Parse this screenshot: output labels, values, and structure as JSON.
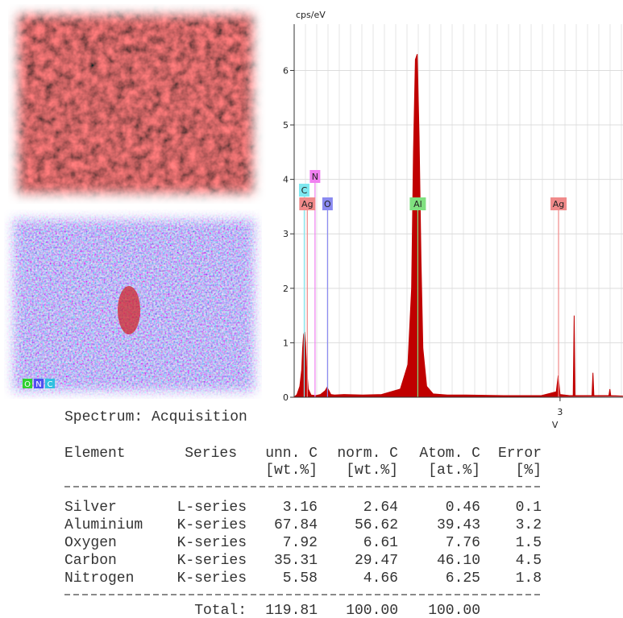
{
  "chart_data": {
    "type": "area",
    "ylabel": "cps/eV",
    "xlabel": "V",
    "color": "#c00000",
    "x": [
      0.17,
      0.2,
      0.23,
      0.25,
      0.26,
      0.27,
      0.28,
      0.29,
      0.3,
      0.32,
      0.35,
      0.4,
      0.45,
      0.5,
      0.52,
      0.54,
      0.56,
      0.6,
      0.7,
      0.9,
      1.1,
      1.3,
      1.38,
      1.42,
      1.44,
      1.46,
      1.48,
      1.5,
      1.52,
      1.54,
      1.58,
      1.65,
      1.8,
      2.0,
      2.4,
      2.8,
      2.96,
      2.98,
      3.0,
      3.1,
      3.14,
      3.15,
      3.16,
      3.3,
      3.34,
      3.35,
      3.36,
      3.5,
      3.52,
      3.53,
      3.54,
      3.67
    ],
    "y": [
      0,
      0.05,
      0.2,
      0.5,
      0.9,
      1.15,
      1.2,
      1.0,
      0.6,
      0.15,
      0.04,
      0.03,
      0.05,
      0.12,
      0.18,
      0.12,
      0.05,
      0.04,
      0.05,
      0.04,
      0.05,
      0.15,
      0.6,
      2.0,
      4.5,
      6.2,
      6.3,
      4.8,
      2.5,
      0.9,
      0.2,
      0.06,
      0.04,
      0.04,
      0.03,
      0.03,
      0.1,
      0.4,
      0.05,
      0.03,
      0.03,
      1.5,
      0.03,
      0.03,
      0.03,
      0.45,
      0.03,
      0.03,
      0.03,
      0.15,
      0.03,
      0.02
    ],
    "xlim": [
      0.17,
      3.67
    ],
    "ylim": [
      0,
      6.85
    ],
    "xticks": [
      3
    ],
    "yticks": [
      0,
      1,
      2,
      3,
      4,
      5,
      6
    ],
    "grid": true,
    "elements": [
      {
        "label": "C",
        "energy": 0.277,
        "color": "#7fe8f0"
      },
      {
        "label": "N",
        "energy": 0.392,
        "color": "#f080f0"
      },
      {
        "label": "Ag",
        "energy": 0.31,
        "color": "#f08a8a"
      },
      {
        "label": "O",
        "energy": 0.525,
        "color": "#8a8af0"
      },
      {
        "label": "Al",
        "energy": 1.486,
        "color": "#80e080"
      },
      {
        "label": "Ag",
        "energy": 2.984,
        "color": "#f08a8a"
      }
    ]
  },
  "map_legend": [
    "O",
    "N",
    "C"
  ],
  "table": {
    "title": "Spectrum: Acquisition",
    "headers": [
      "Element",
      "Series",
      "unn. C",
      "norm. C",
      "Atom. C",
      "Error"
    ],
    "units": [
      "[wt.%]",
      "[wt.%]",
      "[at.%]",
      "[%]"
    ],
    "rows": [
      [
        "Silver",
        "L-series",
        "3.16",
        "2.64",
        "0.46",
        "0.1"
      ],
      [
        "Aluminium",
        "K-series",
        "67.84",
        "56.62",
        "39.43",
        "3.2"
      ],
      [
        "Oxygen",
        "K-series",
        "7.92",
        "6.61",
        "7.76",
        "1.5"
      ],
      [
        "Carbon",
        "K-series",
        "35.31",
        "29.47",
        "46.10",
        "4.5"
      ],
      [
        "Nitrogen",
        "K-series",
        "5.58",
        "4.66",
        "6.25",
        "1.8"
      ]
    ],
    "total": {
      "label": "Total:",
      "values": [
        "119.81",
        "100.00",
        "100.00"
      ]
    }
  }
}
